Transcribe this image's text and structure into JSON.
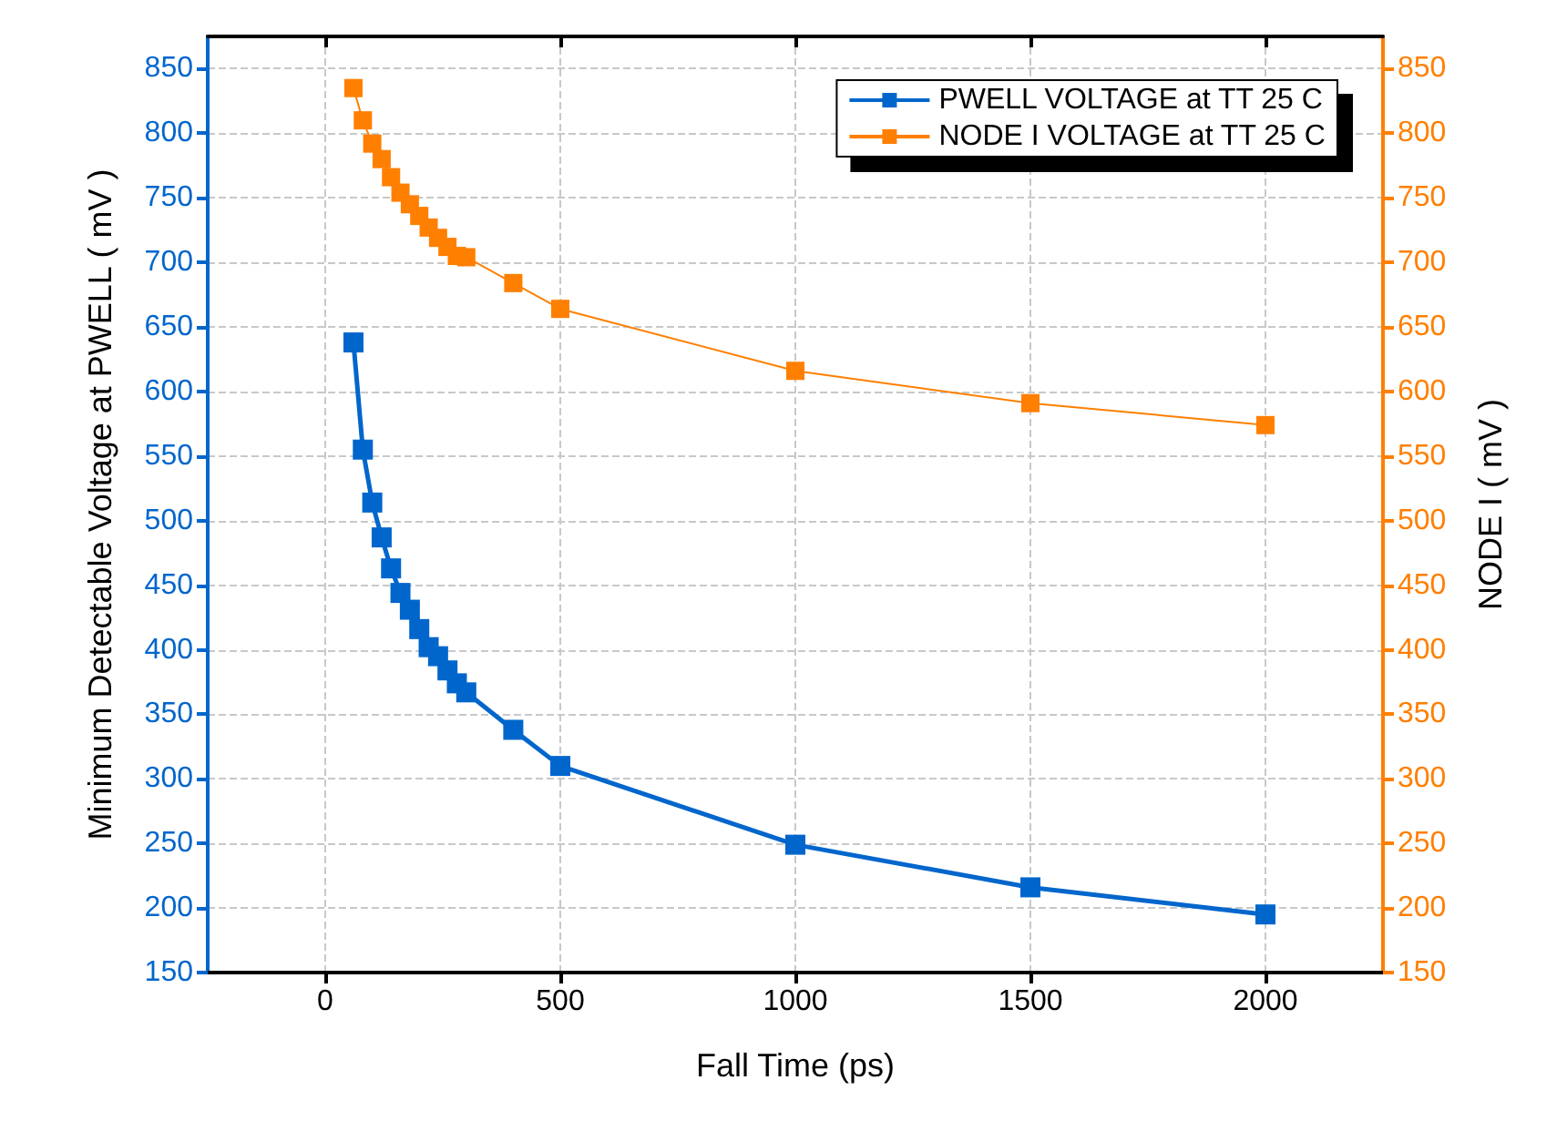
{
  "chart_data": {
    "type": "line",
    "xlabel": "Fall Time (ps)",
    "ylabel": "Minimum Detectable Voltage at PWELL ( mV )",
    "y2label": "NODE I ( mV )",
    "x": [
      60,
      80,
      100,
      120,
      140,
      160,
      180,
      200,
      220,
      240,
      260,
      280,
      300,
      400,
      500,
      1000,
      1500,
      2000
    ],
    "series": [
      {
        "name": "PWELL VOLTAGE at TT 25 C",
        "color": "#0066cc",
        "values": [
          638,
          555,
          514,
          487,
          463,
          444,
          431,
          416,
          402,
          395,
          384,
          374,
          367,
          338,
          310,
          249,
          216,
          195
        ]
      },
      {
        "name": "NODE I VOLTAGE at TT 25 C",
        "color": "#ff7f00",
        "axis": "y2",
        "values": [
          835,
          810,
          792,
          780,
          766,
          754,
          745,
          736,
          727,
          719,
          712,
          705,
          704,
          684,
          664,
          616,
          591,
          574
        ]
      }
    ],
    "xlim": [
      -250,
      2250
    ],
    "xticks": [
      0,
      500,
      1000,
      1500,
      2000
    ],
    "ylim": [
      150,
      875
    ],
    "yticks": [
      150,
      200,
      250,
      300,
      350,
      400,
      450,
      500,
      550,
      600,
      650,
      700,
      750,
      800,
      850
    ],
    "y2lim": [
      150,
      875
    ],
    "y2ticks": [
      150,
      200,
      250,
      300,
      350,
      400,
      450,
      500,
      550,
      600,
      650,
      700,
      750,
      800,
      850
    ],
    "grid": true,
    "legend": "top right",
    "marker": "square",
    "line_style": "solid"
  }
}
